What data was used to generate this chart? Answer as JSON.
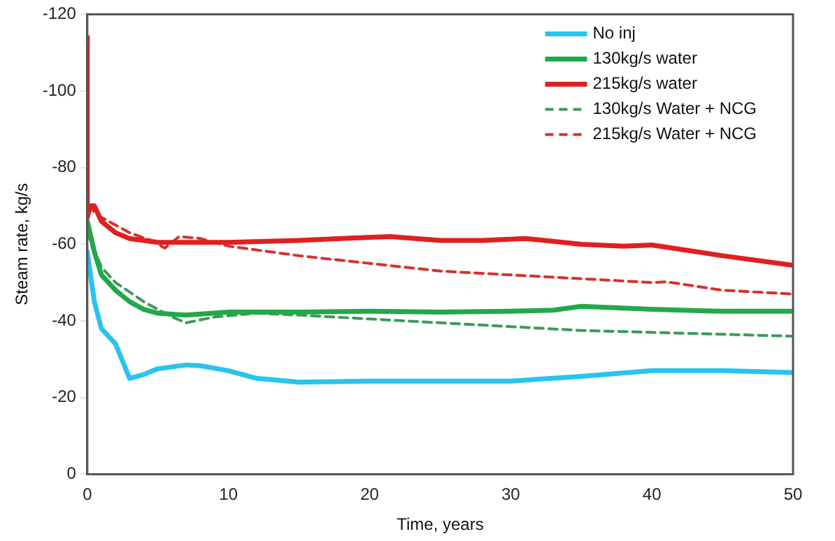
{
  "chart_data": {
    "type": "line",
    "xlabel": "Time, years",
    "ylabel": "Steam rate, kg/s",
    "xlim": [
      0,
      50
    ],
    "xticks": [
      0,
      10,
      20,
      30,
      40,
      50
    ],
    "ylim": [
      0,
      -120
    ],
    "yticks": [
      0,
      -20,
      -40,
      -60,
      -80,
      -100,
      -120
    ],
    "grid": false,
    "legend": "top right",
    "marker": "none",
    "series": [
      {
        "name": "No inj",
        "color": "#29c4ee",
        "line_style": "solid",
        "x": [
          0,
          0.5,
          1,
          2,
          3,
          4,
          5,
          7,
          8,
          10,
          12,
          15,
          20,
          25,
          30,
          35,
          40,
          45,
          50
        ],
        "values": [
          -58,
          -45,
          -38,
          -34,
          -25,
          -26,
          -27.5,
          -28.5,
          -28.3,
          -27,
          -25,
          -24,
          -24.3,
          -24.3,
          -24.3,
          -25.5,
          -27,
          -27,
          -26.5
        ]
      },
      {
        "name": "130kg/s water",
        "color": "#22a84a",
        "line_style": "solid",
        "x": [
          0,
          0.5,
          1,
          2,
          3,
          4,
          5,
          7,
          10,
          15,
          20,
          25,
          30,
          33,
          35,
          40,
          45,
          50
        ],
        "values": [
          -66,
          -58,
          -52,
          -48,
          -45,
          -43,
          -42,
          -41.5,
          -42.3,
          -42.3,
          -42.5,
          -42.3,
          -42.5,
          -42.8,
          -43.8,
          -43,
          -42.5,
          -42.5
        ]
      },
      {
        "name": "215kg/s water",
        "color": "#e02020",
        "line_style": "solid",
        "x": [
          0,
          0,
          0.2,
          0.5,
          1,
          2,
          3,
          5,
          10,
          15,
          20,
          21.5,
          25,
          28,
          31,
          35,
          38,
          40,
          45,
          50
        ],
        "values": [
          -114,
          -67,
          -70,
          -70,
          -66,
          -63,
          -61.5,
          -60.5,
          -60.5,
          -61,
          -61.8,
          -62,
          -61,
          -61,
          -61.5,
          -60,
          -59.5,
          -59.8,
          -57,
          -54.5
        ]
      },
      {
        "name": "130kg/s Water + NCG",
        "color": "#3a9a5a",
        "line_style": "dashed",
        "x": [
          0,
          1,
          2,
          4,
          6,
          7,
          9,
          12,
          15,
          20,
          25,
          30,
          35,
          40,
          45,
          50
        ],
        "values": [
          -63,
          -54,
          -50,
          -45,
          -41,
          -39.5,
          -41,
          -42,
          -41.5,
          -40.5,
          -39.5,
          -38.5,
          -37.5,
          -37,
          -36.5,
          -36
        ]
      },
      {
        "name": "215kg/s Water + NCG",
        "color": "#d83030",
        "line_style": "dashed",
        "x": [
          0,
          1,
          2,
          3,
          4.5,
          5.5,
          6.5,
          8,
          10,
          15,
          20,
          25,
          30,
          35,
          40,
          41,
          45,
          50
        ],
        "values": [
          -70,
          -67,
          -65,
          -63,
          -61,
          -59,
          -62,
          -61.5,
          -59.5,
          -57,
          -55,
          -53,
          -52,
          -51,
          -50,
          -50.2,
          -48,
          -47
        ]
      }
    ]
  }
}
